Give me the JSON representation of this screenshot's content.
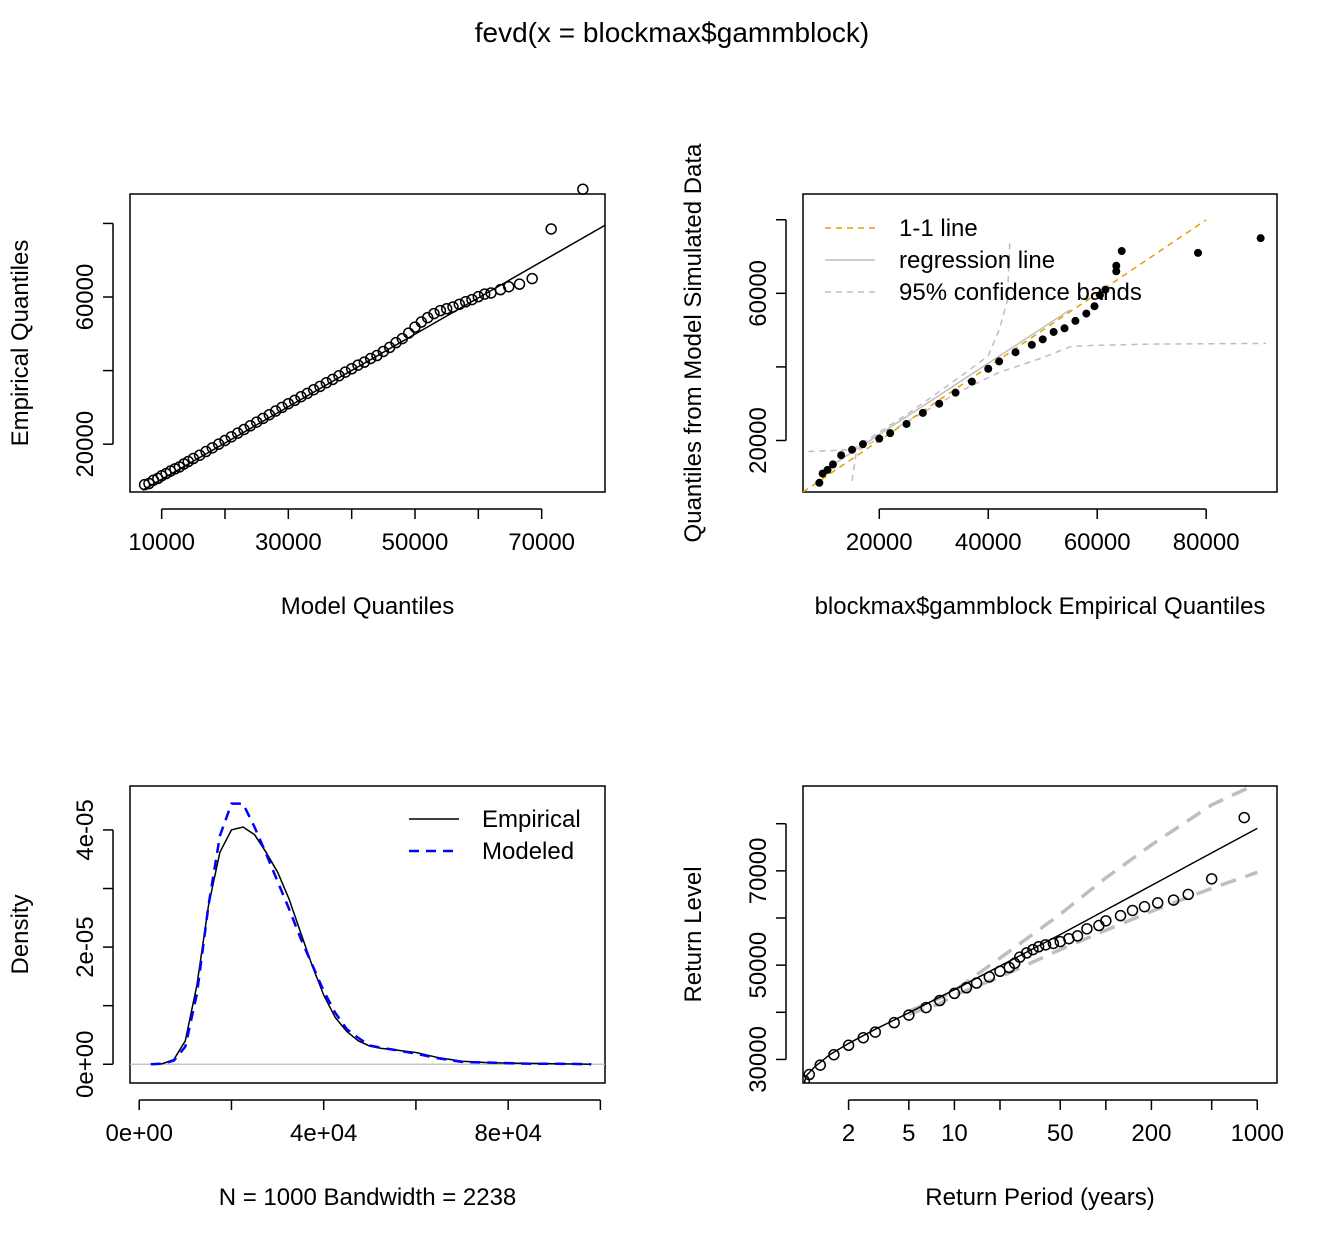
{
  "title": "fevd(x = blockmax$gammblock)",
  "colors": {
    "orange": "#E69F00",
    "gray": "#BEBEBE",
    "blue": "#0000FF",
    "black": "#000000"
  },
  "chart_data": [
    {
      "type": "scatter",
      "xlabel": "Model Quantiles",
      "ylabel": "Empirical Quantiles",
      "xlim": [
        5000,
        80000
      ],
      "ylim": [
        7000,
        88000
      ],
      "xticks": [
        10000,
        20000,
        30000,
        40000,
        50000,
        60000,
        70000
      ],
      "xticklabels": [
        "10000",
        "",
        "30000",
        "",
        "50000",
        "",
        "70000"
      ],
      "yticks": [
        20000,
        40000,
        60000,
        80000
      ],
      "yticklabels": [
        "20000",
        "",
        "60000",
        ""
      ],
      "fit_line": [
        [
          7000,
          7500
        ],
        [
          80000,
          79500
        ]
      ],
      "marker": "open-circle",
      "points": [
        [
          7300,
          9000
        ],
        [
          8000,
          9300
        ],
        [
          8700,
          10200
        ],
        [
          9400,
          10700
        ],
        [
          10000,
          11400
        ],
        [
          10700,
          12000
        ],
        [
          11400,
          12700
        ],
        [
          12100,
          13300
        ],
        [
          12800,
          13800
        ],
        [
          13500,
          14600
        ],
        [
          14200,
          15300
        ],
        [
          15000,
          16100
        ],
        [
          16000,
          17000
        ],
        [
          17000,
          18000
        ],
        [
          18000,
          19000
        ],
        [
          19000,
          20000
        ],
        [
          20000,
          21000
        ],
        [
          21000,
          22000
        ],
        [
          22000,
          23000
        ],
        [
          23000,
          24000
        ],
        [
          24000,
          25000
        ],
        [
          25000,
          26000
        ],
        [
          26000,
          27000
        ],
        [
          27000,
          28000
        ],
        [
          28000,
          29000
        ],
        [
          29000,
          30000
        ],
        [
          30000,
          31000
        ],
        [
          31000,
          31900
        ],
        [
          32000,
          32900
        ],
        [
          33000,
          33800
        ],
        [
          34000,
          34800
        ],
        [
          35000,
          35700
        ],
        [
          36000,
          36700
        ],
        [
          37000,
          37600
        ],
        [
          38000,
          38600
        ],
        [
          39000,
          39600
        ],
        [
          40000,
          40500
        ],
        [
          41000,
          41500
        ],
        [
          42000,
          42300
        ],
        [
          43000,
          43300
        ],
        [
          44000,
          44100
        ],
        [
          45000,
          45200
        ],
        [
          46000,
          46300
        ],
        [
          47000,
          47600
        ],
        [
          48000,
          48700
        ],
        [
          49000,
          50200
        ],
        [
          50000,
          51800
        ],
        [
          51000,
          53200
        ],
        [
          52000,
          54400
        ],
        [
          53000,
          55500
        ],
        [
          54000,
          56300
        ],
        [
          55000,
          56800
        ],
        [
          56000,
          57300
        ],
        [
          57000,
          58000
        ],
        [
          58000,
          58700
        ],
        [
          59000,
          59300
        ],
        [
          60000,
          60100
        ],
        [
          61000,
          60800
        ],
        [
          62000,
          61100
        ],
        [
          63500,
          62000
        ],
        [
          64800,
          62800
        ],
        [
          66500,
          63500
        ],
        [
          68500,
          65000
        ],
        [
          71500,
          78500
        ],
        [
          76500,
          89300
        ]
      ]
    },
    {
      "type": "scatter",
      "xlabel": "blockmax$gammblock Empirical Quantiles",
      "ylabel": "Quantiles from Model Simulated Data",
      "xlim": [
        6000,
        93000
      ],
      "ylim": [
        6000,
        87000
      ],
      "xticks": [
        20000,
        40000,
        60000,
        80000
      ],
      "xticklabels": [
        "20000",
        "40000",
        "60000",
        "80000"
      ],
      "yticks": [
        20000,
        40000,
        60000,
        80000
      ],
      "yticklabels": [
        "20000",
        "",
        "60000",
        ""
      ],
      "marker": "filled-circle",
      "legend": [
        "1-1 line",
        "regression line",
        "95% confidence bands"
      ],
      "legend_position": "top-left",
      "one_to_one_line": [
        [
          6000,
          6000
        ],
        [
          80000,
          80000
        ]
      ],
      "regression_line": [
        [
          9500,
          11500
        ],
        [
          55000,
          55500
        ]
      ],
      "band_upper": [
        [
          7000,
          17000
        ],
        [
          15000,
          17500
        ],
        [
          25000,
          27000
        ],
        [
          35000,
          37500
        ],
        [
          40000,
          43000
        ],
        [
          42000,
          50000
        ],
        [
          43500,
          58000
        ],
        [
          44000,
          75000
        ]
      ],
      "band_lower": [
        [
          15000,
          9000
        ],
        [
          15800,
          17000
        ],
        [
          25000,
          25000
        ],
        [
          35000,
          33500
        ],
        [
          42000,
          38500
        ],
        [
          50000,
          42500
        ],
        [
          55000,
          45500
        ],
        [
          58000,
          45800
        ],
        [
          70000,
          46200
        ],
        [
          91000,
          46400
        ]
      ],
      "points": [
        [
          9000,
          8500
        ],
        [
          9600,
          11000
        ],
        [
          10500,
          12000
        ],
        [
          11500,
          13500
        ],
        [
          13000,
          16000
        ],
        [
          15000,
          17500
        ],
        [
          17000,
          19000
        ],
        [
          20000,
          20500
        ],
        [
          22000,
          22000
        ],
        [
          25000,
          24500
        ],
        [
          28000,
          27500
        ],
        [
          31000,
          30000
        ],
        [
          34000,
          33000
        ],
        [
          37000,
          36000
        ],
        [
          40000,
          39500
        ],
        [
          42000,
          41500
        ],
        [
          45000,
          44000
        ],
        [
          48000,
          46000
        ],
        [
          50000,
          47500
        ],
        [
          52000,
          49500
        ],
        [
          54000,
          50500
        ],
        [
          56000,
          52500
        ],
        [
          58000,
          54500
        ],
        [
          59500,
          56500
        ],
        [
          60500,
          59500
        ],
        [
          61500,
          61000
        ],
        [
          63500,
          66000
        ],
        [
          63500,
          67500
        ],
        [
          64500,
          71500
        ],
        [
          78500,
          71000
        ],
        [
          90000,
          75000
        ]
      ]
    },
    {
      "type": "line",
      "xlabel": "N = 1000   Bandwidth = 2238",
      "ylabel": "Density",
      "xlim": [
        -2000,
        101000
      ],
      "ylim": [
        -3.2e-06,
        4.75e-05
      ],
      "xticks": [
        0,
        20000,
        40000,
        60000,
        80000,
        100000
      ],
      "xticklabels": [
        "0e+00",
        "",
        "4e+04",
        "",
        "8e+04",
        ""
      ],
      "yticks": [
        0,
        1e-05,
        2e-05,
        3e-05,
        4e-05
      ],
      "yticklabels": [
        "0e+00",
        "",
        "2e-05",
        "",
        "4e-05"
      ],
      "legend": [
        "Empirical",
        "Modeled"
      ],
      "legend_position": "top-right",
      "series": [
        {
          "name": "Empirical",
          "color": "#000000",
          "dash": "solid",
          "x": [
            2500,
            5000,
            7500,
            10000,
            12500,
            15000,
            17500,
            20000,
            22500,
            25000,
            27500,
            30000,
            32500,
            35000,
            37500,
            40000,
            42500,
            45000,
            47500,
            50000,
            52500,
            55000,
            60000,
            65000,
            70000,
            75000,
            80000,
            85000,
            90000,
            95000,
            98000
          ],
          "y": [
            0,
            1e-07,
            8e-07,
            4e-06,
            1.35e-05,
            2.7e-05,
            3.62e-05,
            4e-05,
            4.05e-05,
            3.92e-05,
            3.62e-05,
            3.28e-05,
            2.82e-05,
            2.25e-05,
            1.68e-05,
            1.18e-05,
            8e-06,
            5.6e-06,
            4e-06,
            3.1e-06,
            2.7e-06,
            2.5e-06,
            2e-06,
            1.1e-06,
            5e-07,
            3e-07,
            2e-07,
            1.5e-07,
            1e-07,
            5e-08,
            0
          ]
        },
        {
          "name": "Modeled",
          "color": "#0000FF",
          "dash": "dashed",
          "x": [
            2500,
            5000,
            7500,
            10000,
            12500,
            15000,
            17500,
            20000,
            22500,
            25000,
            27500,
            30000,
            32500,
            35000,
            37500,
            40000,
            42500,
            45000,
            47500,
            50000,
            52500,
            55000,
            60000,
            65000,
            70000,
            75000,
            80000,
            85000,
            90000,
            95000,
            98000
          ],
          "y": [
            0,
            1e-07,
            6e-07,
            3e-06,
            1.2e-05,
            2.7e-05,
            3.9e-05,
            4.45e-05,
            4.45e-05,
            4.05e-05,
            3.6e-05,
            3.12e-05,
            2.65e-05,
            2.15e-05,
            1.7e-05,
            1.25e-05,
            8.8e-06,
            6e-06,
            4.5e-06,
            3.2e-06,
            2.8e-06,
            2.5e-06,
            1.8e-06,
            1e-06,
            4e-07,
            3e-07,
            2e-07,
            1e-07,
            1e-07,
            5e-08,
            0
          ]
        }
      ]
    },
    {
      "type": "scatter",
      "xlabel": "Return Period (years)",
      "ylabel": "Return Level",
      "xscale": "log",
      "xlim": [
        1,
        1350
      ],
      "ylim": [
        25000,
        88000
      ],
      "xticks": [
        2,
        5,
        10,
        20,
        50,
        100,
        200,
        500,
        1000
      ],
      "xticklabels": [
        "2",
        "5",
        "10",
        "",
        "50",
        "",
        "200",
        "",
        "1000"
      ],
      "yticks": [
        30000,
        40000,
        50000,
        60000,
        70000,
        80000
      ],
      "yticklabels": [
        "30000",
        "",
        "50000",
        "",
        "70000",
        ""
      ],
      "marker": "open-circle",
      "return_level_line": [
        [
          1.01,
          24500
        ],
        [
          1.05,
          26500
        ],
        [
          1.2,
          28500
        ],
        [
          1.5,
          31000
        ],
        [
          2,
          33400
        ],
        [
          3,
          36400
        ],
        [
          5,
          39900
        ],
        [
          10,
          44800
        ],
        [
          20,
          49800
        ],
        [
          50,
          56500
        ],
        [
          100,
          61700
        ],
        [
          200,
          66900
        ],
        [
          500,
          73800
        ],
        [
          1000,
          79000
        ]
      ],
      "ci_upper": [
        [
          5,
          40200
        ],
        [
          8,
          43000
        ],
        [
          10,
          44600
        ],
        [
          20,
          51500
        ],
        [
          50,
          60800
        ],
        [
          100,
          68500
        ],
        [
          200,
          75500
        ],
        [
          500,
          84000
        ],
        [
          1000,
          88500
        ]
      ],
      "ci_lower": [
        [
          5,
          39600
        ],
        [
          8,
          41800
        ],
        [
          10,
          43600
        ],
        [
          20,
          47500
        ],
        [
          50,
          53300
        ],
        [
          100,
          57400
        ],
        [
          200,
          61400
        ],
        [
          500,
          66300
        ],
        [
          1000,
          69700
        ]
      ],
      "points": [
        [
          1.02,
          25500
        ],
        [
          1.1,
          26800
        ],
        [
          1.3,
          28800
        ],
        [
          1.6,
          31000
        ],
        [
          2,
          33000
        ],
        [
          2.5,
          34600
        ],
        [
          3,
          35800
        ],
        [
          4,
          37800
        ],
        [
          5,
          39400
        ],
        [
          6.5,
          41000
        ],
        [
          8,
          42500
        ],
        [
          10,
          44000
        ],
        [
          12,
          45200
        ],
        [
          14,
          46200
        ],
        [
          17,
          47500
        ],
        [
          20,
          48700
        ],
        [
          23,
          49500
        ],
        [
          25,
          50400
        ],
        [
          27,
          51700
        ],
        [
          30,
          52600
        ],
        [
          33,
          53300
        ],
        [
          36,
          53900
        ],
        [
          40,
          54300
        ],
        [
          45,
          54600
        ],
        [
          50,
          55000
        ],
        [
          57,
          55600
        ],
        [
          65,
          56200
        ],
        [
          75,
          57700
        ],
        [
          90,
          58400
        ],
        [
          100,
          59400
        ],
        [
          125,
          60500
        ],
        [
          150,
          61600
        ],
        [
          180,
          62400
        ],
        [
          220,
          63200
        ],
        [
          280,
          63800
        ],
        [
          350,
          65000
        ],
        [
          500,
          68300
        ],
        [
          820,
          81300
        ]
      ]
    }
  ]
}
